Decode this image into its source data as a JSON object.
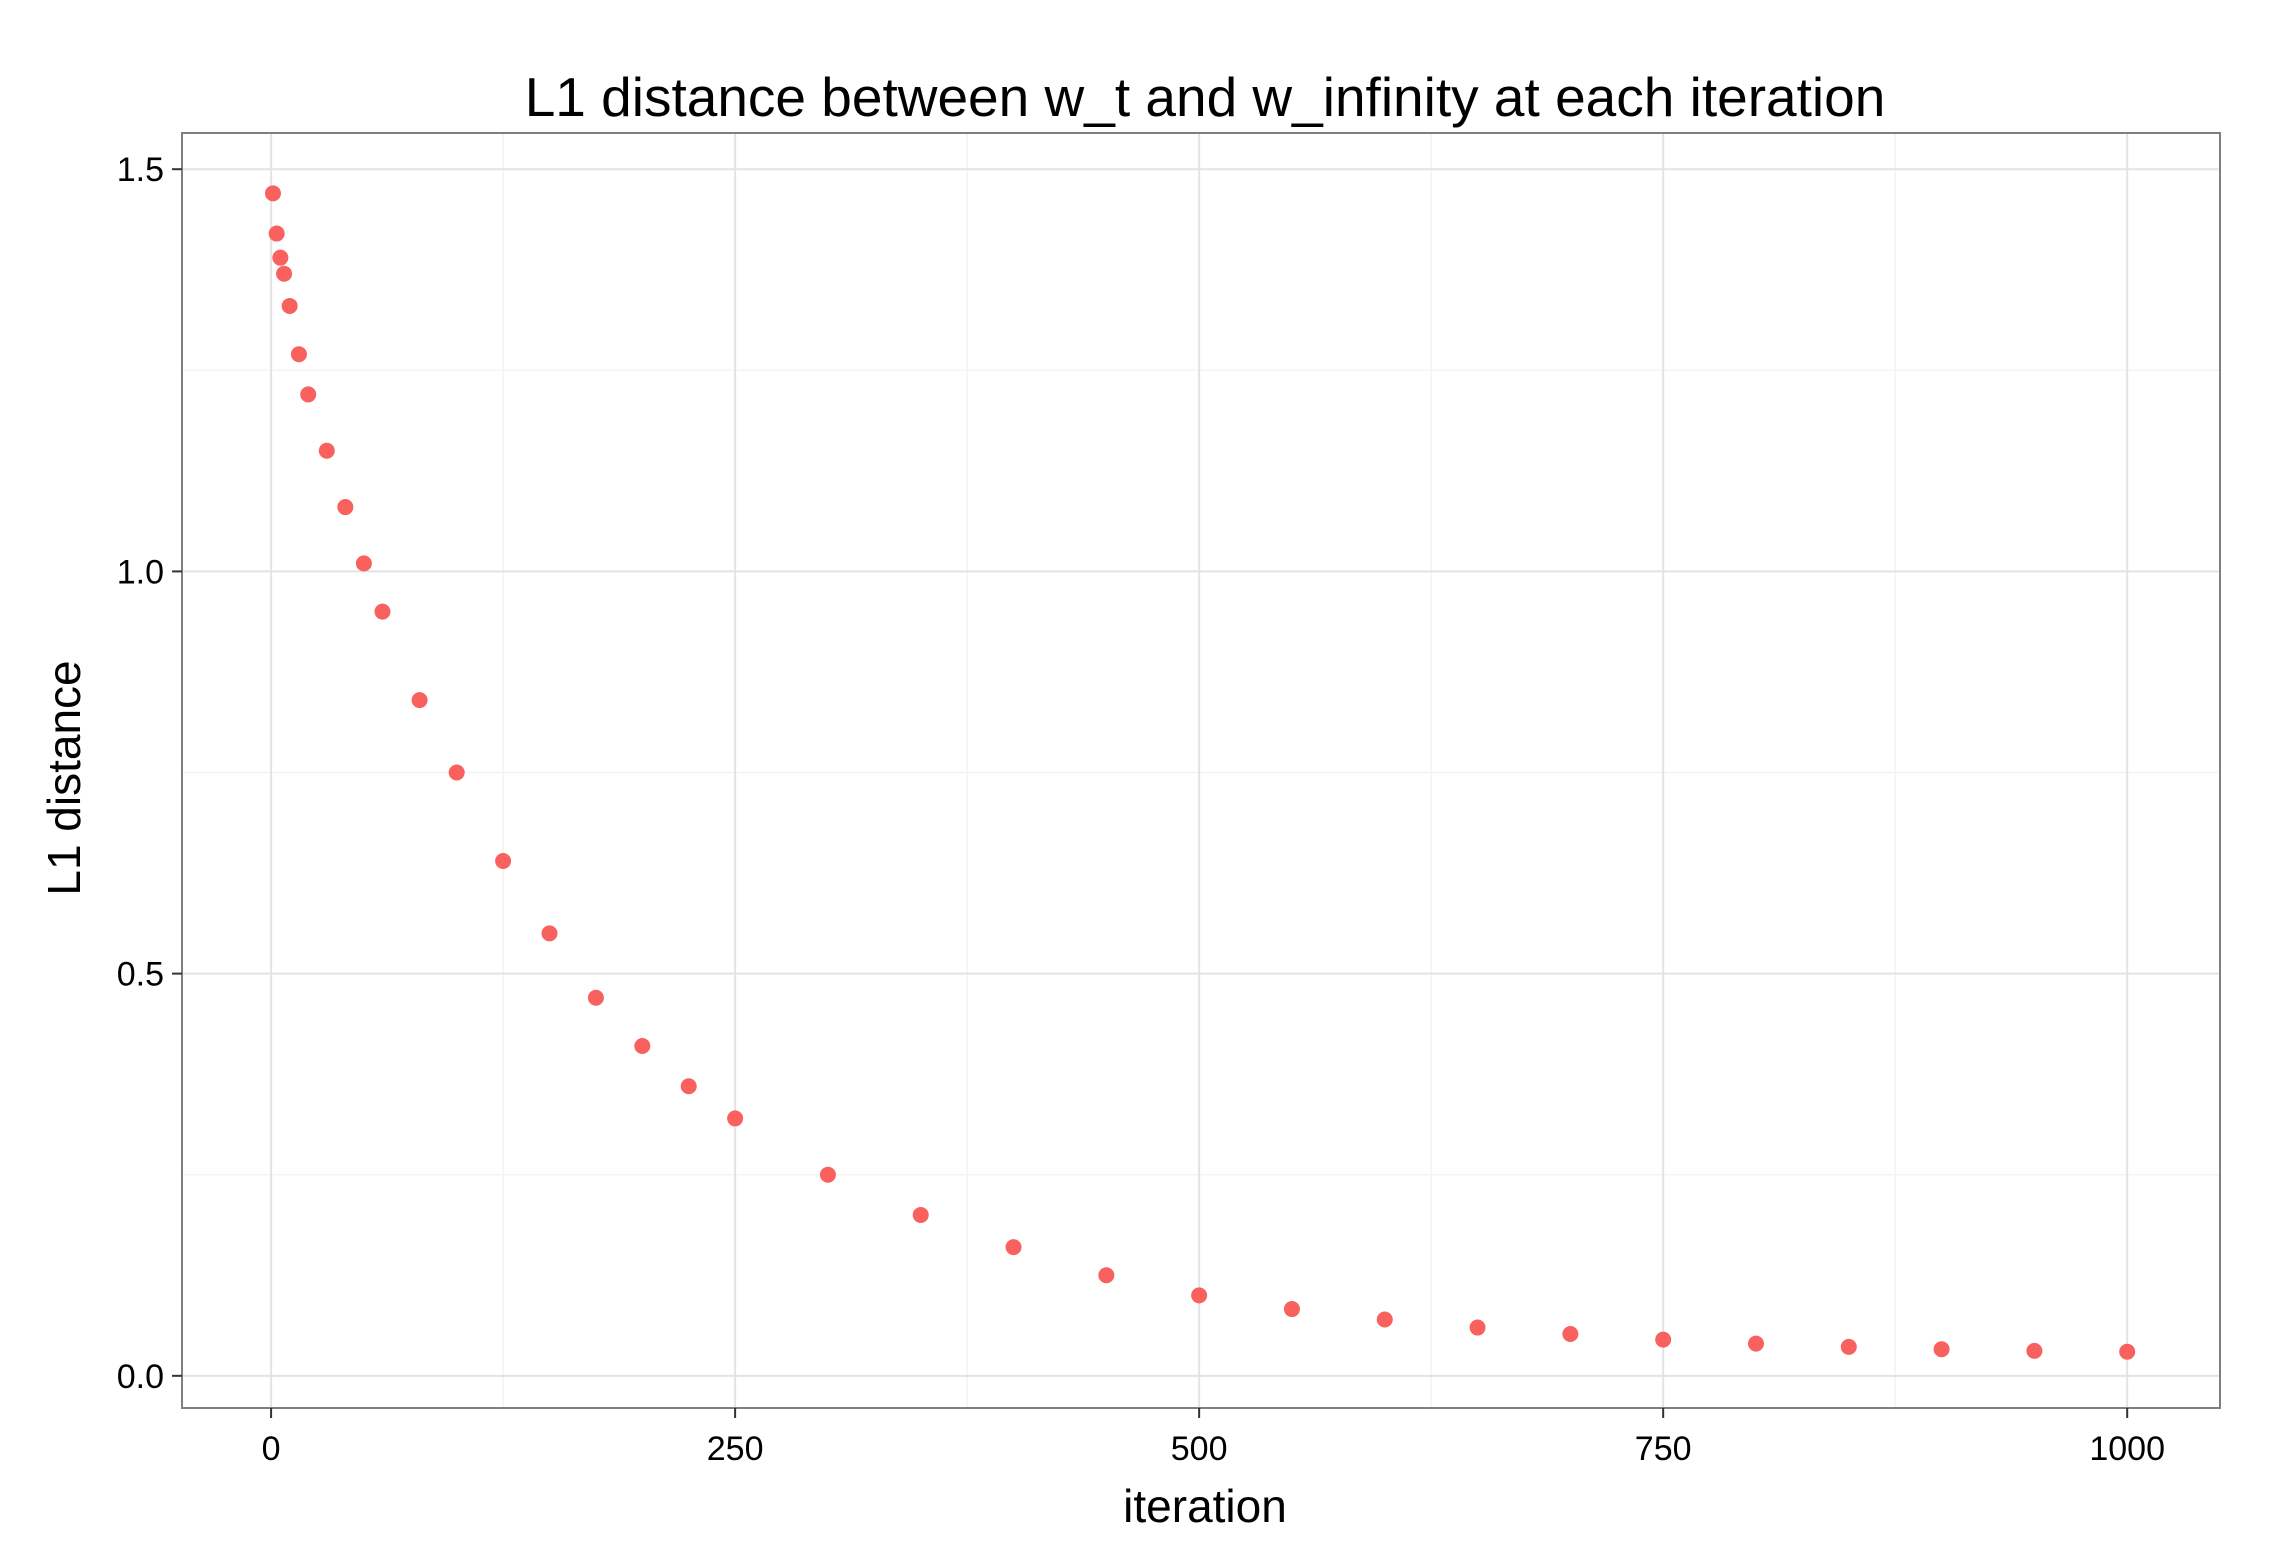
{
  "chart_data": {
    "type": "scatter",
    "title": "L1 distance between w_t and w_infinity at each iteration",
    "xlabel": "iteration",
    "ylabel": "L1 distance",
    "xlim": [
      -48,
      1050
    ],
    "ylim": [
      -0.04,
      1.545
    ],
    "x_ticks": [
      0,
      250,
      500,
      750,
      1000
    ],
    "x_tick_labels": [
      "0",
      "250",
      "500",
      "750",
      "1000"
    ],
    "y_ticks": [
      0.0,
      0.5,
      1.0,
      1.5
    ],
    "y_tick_labels": [
      "0.0",
      "0.5",
      "1.0",
      "1.5"
    ],
    "grid": true,
    "point_color": "#F8615E",
    "series": [
      {
        "x": [
          1,
          3,
          5,
          7,
          10,
          15,
          20,
          30,
          40,
          50,
          60,
          80,
          100,
          125,
          150,
          175,
          200,
          225,
          250,
          300,
          350,
          400,
          450,
          500,
          550,
          600,
          650,
          700,
          750,
          800,
          850,
          900,
          950,
          1000
        ],
        "values": [
          1.47,
          1.42,
          1.39,
          1.37,
          1.33,
          1.27,
          1.22,
          1.15,
          1.08,
          1.01,
          0.95,
          0.84,
          0.75,
          0.64,
          0.55,
          0.47,
          0.41,
          0.36,
          0.32,
          0.25,
          0.2,
          0.16,
          0.125,
          0.1,
          0.083,
          0.07,
          0.06,
          0.052,
          0.045,
          0.04,
          0.036,
          0.033,
          0.031,
          0.03
        ]
      }
    ]
  }
}
